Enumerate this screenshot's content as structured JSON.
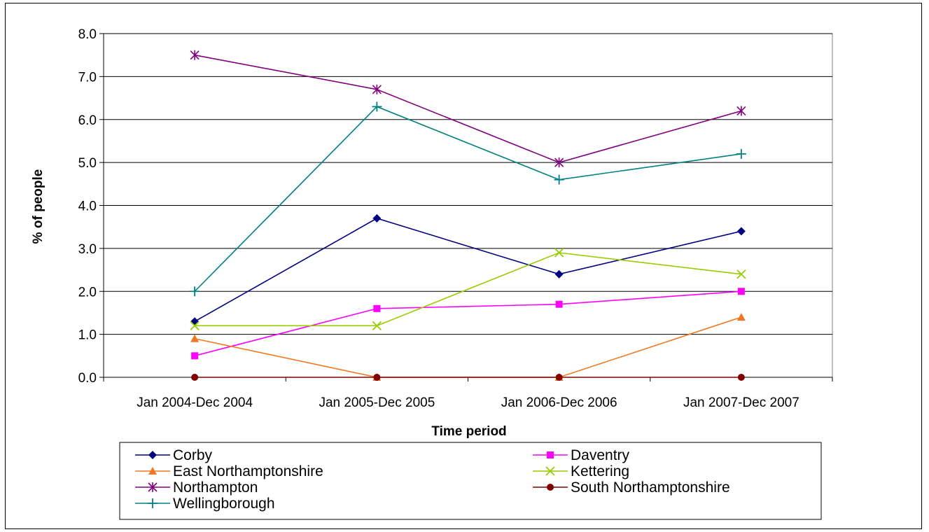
{
  "chart_data": {
    "type": "line",
    "title": "",
    "xlabel": "Time period",
    "ylabel": "% of people",
    "categories": [
      "Jan 2004-Dec 2004",
      "Jan 2005-Dec 2005",
      "Jan 2006-Dec 2006",
      "Jan 2007-Dec 2007"
    ],
    "ylim": [
      0,
      8
    ],
    "ytick_labels": [
      "0.0",
      "1.0",
      "2.0",
      "3.0",
      "4.0",
      "5.0",
      "6.0",
      "7.0",
      "8.0"
    ],
    "grid": "horizontal",
    "legend_position": "bottom",
    "series": [
      {
        "name": "Corby",
        "values": [
          1.3,
          3.7,
          2.4,
          3.4
        ],
        "color": "#000080",
        "marker": "diamond"
      },
      {
        "name": "Daventry",
        "values": [
          0.5,
          1.6,
          1.7,
          2.0
        ],
        "color": "#FF00FF",
        "marker": "square"
      },
      {
        "name": "East Northamptonshire",
        "values": [
          0.9,
          0.0,
          0.0,
          1.4
        ],
        "color": "#F07820",
        "marker": "triangle"
      },
      {
        "name": "Kettering",
        "values": [
          1.2,
          1.2,
          2.9,
          2.4
        ],
        "color": "#99CC00",
        "marker": "x"
      },
      {
        "name": "Northampton",
        "values": [
          7.5,
          6.7,
          5.0,
          6.2
        ],
        "color": "#800080",
        "marker": "star"
      },
      {
        "name": "South Northamptonshire",
        "values": [
          0.0,
          0.0,
          0.0,
          0.0
        ],
        "color": "#800000",
        "marker": "circle"
      },
      {
        "name": "Wellingborough",
        "values": [
          2.0,
          6.3,
          4.6,
          5.2
        ],
        "color": "#008080",
        "marker": "plus"
      }
    ]
  }
}
